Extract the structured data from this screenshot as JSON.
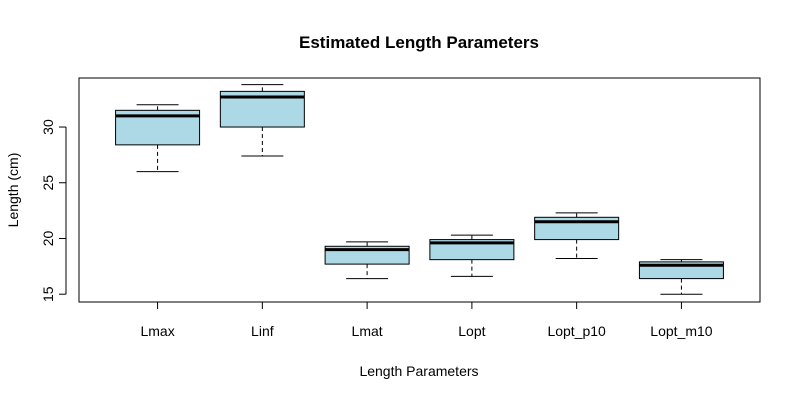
{
  "chart_data": {
    "type": "boxplot",
    "title": "Estimated Length Parameters",
    "xlabel": "Length Parameters",
    "ylabel": "Length (cm)",
    "categories": [
      "Lmax",
      "Linf",
      "Lmat",
      "Lopt",
      "Lopt_p10",
      "Lopt_m10"
    ],
    "boxes": [
      {
        "min": 26.0,
        "q1": 28.4,
        "median": 31.0,
        "q3": 31.5,
        "max": 32.0
      },
      {
        "min": 27.4,
        "q1": 30.0,
        "median": 32.7,
        "q3": 33.2,
        "max": 33.8
      },
      {
        "min": 16.4,
        "q1": 17.7,
        "median": 19.0,
        "q3": 19.3,
        "max": 19.7
      },
      {
        "min": 16.6,
        "q1": 18.1,
        "median": 19.6,
        "q3": 19.9,
        "max": 20.3
      },
      {
        "min": 18.2,
        "q1": 19.9,
        "median": 21.5,
        "q3": 21.9,
        "max": 22.3
      },
      {
        "min": 15.0,
        "q1": 16.4,
        "median": 17.6,
        "q3": 17.9,
        "max": 18.1
      }
    ],
    "yticks": [
      15,
      20,
      25,
      30
    ],
    "ylim": [
      14.3,
      34.4
    ],
    "box_fill": "#add8e6",
    "stroke": "#000000",
    "grid": false
  }
}
